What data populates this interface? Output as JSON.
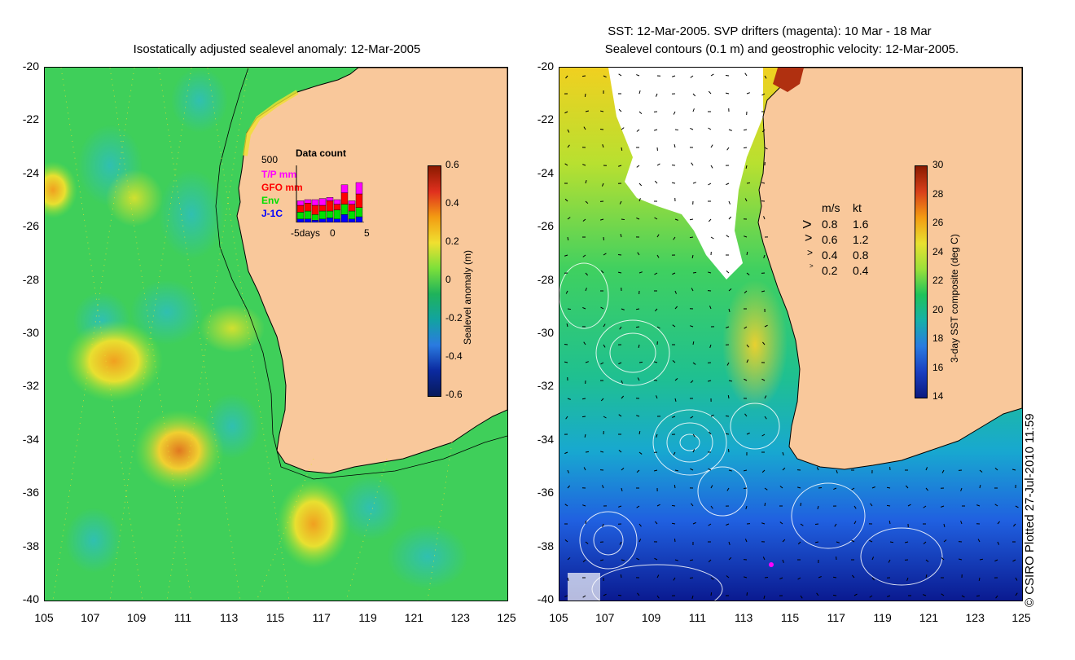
{
  "left_panel": {
    "title": "Isostatically adjusted sealevel anomaly: 12-Mar-2005",
    "y_ticks": [
      "-20",
      "-22",
      "-24",
      "-26",
      "-28",
      "-30",
      "-32",
      "-34",
      "-36",
      "-38",
      "-40"
    ],
    "x_ticks": [
      "105",
      "107",
      "109",
      "111",
      "113",
      "115",
      "117",
      "119",
      "121",
      "123",
      "125"
    ],
    "colorbar": {
      "label": "Sealevel anomaly (m)",
      "ticks": [
        "0.6",
        "0.4",
        "0.2",
        "0",
        "-0.2",
        "-0.4",
        "-0.6"
      ],
      "colors": [
        "#8b1a00",
        "#e0301e",
        "#f39c12",
        "#f0e030",
        "#7ce03a",
        "#1fb35a",
        "#12a3a0",
        "#2a7be0",
        "#0b2aa0",
        "#081a5a"
      ]
    },
    "inset": {
      "max_label": "500",
      "title": "Data count",
      "legend": [
        {
          "label": "T/P mm",
          "color": "#ff00ff"
        },
        {
          "label": "GFO mm",
          "color": "#ff0000"
        },
        {
          "label": "Env",
          "color": "#00e000"
        },
        {
          "label": "J-1C",
          "color": "#0000ff"
        }
      ],
      "x_labels": [
        "-5days",
        "0",
        "5"
      ]
    }
  },
  "right_panel": {
    "title_line1": "SST: 12-Mar-2005. SVP drifters (magenta): 10 Mar - 18 Mar",
    "title_line2": "Sealevel contours (0.1 m) and geostrophic velocity: 12-Mar-2005.",
    "y_ticks": [
      "-20",
      "-22",
      "-24",
      "-26",
      "-28",
      "-30",
      "-32",
      "-34",
      "-36",
      "-38",
      "-40"
    ],
    "x_ticks": [
      "105",
      "107",
      "109",
      "111",
      "113",
      "115",
      "117",
      "119",
      "121",
      "123",
      "125"
    ],
    "colorbar": {
      "label": "3-day SST composite (deg C)",
      "ticks": [
        "30",
        "28",
        "26",
        "24",
        "22",
        "20",
        "18",
        "16",
        "14"
      ],
      "colors": [
        "#8b1a00",
        "#d9401a",
        "#f39c12",
        "#e8e030",
        "#9be03a",
        "#1fc35a",
        "#17b0a8",
        "#2a7be0",
        "#1a3fc0",
        "#0b1a80"
      ]
    },
    "velocity_legend": {
      "header_ms": "m/s",
      "header_kt": "kt",
      "rows": [
        {
          "ms": "0.8",
          "kt": "1.6"
        },
        {
          "ms": "0.6",
          "kt": "1.2"
        },
        {
          "ms": "0.4",
          "kt": "0.8"
        },
        {
          "ms": "0.2",
          "kt": "0.4"
        }
      ]
    }
  },
  "credit": "© CSIRO Plotted 27-Jul-2010 11:59",
  "colors": {
    "land": "#f9c89b",
    "ocean_left": "#3fcf5a",
    "ocean_right": "#24b36a"
  }
}
